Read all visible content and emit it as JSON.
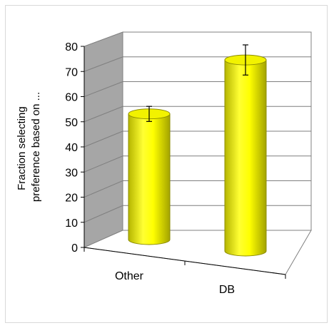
{
  "chart_data": {
    "type": "bar",
    "categories": [
      "Other",
      "DB"
    ],
    "values": [
      50,
      76
    ],
    "error": [
      3,
      6
    ],
    "ylabel_lines": [
      "Fraction selecting",
      "preference based on ..."
    ],
    "ylim": [
      0,
      80
    ],
    "yticks": [
      0,
      10,
      20,
      30,
      40,
      50,
      60,
      70,
      80
    ],
    "grid": true,
    "legend": "none",
    "colors": {
      "bar": "#ffff00",
      "bar_shade": "#b8b800",
      "wall": "#a6a6a6",
      "grid": "#7f7f7f"
    }
  }
}
